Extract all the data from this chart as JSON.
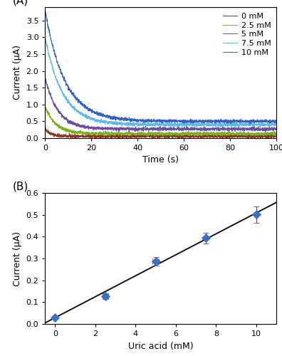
{
  "panel_A": {
    "label": "(A)",
    "curves": [
      {
        "label": "0 mM",
        "color": "#8B3520",
        "I0": 0.28,
        "tau": 2.5,
        "ss": 0.05
      },
      {
        "label": "2.5 mM",
        "color": "#7DAF1C",
        "I0": 0.95,
        "tau": 4.5,
        "ss": 0.13
      },
      {
        "label": "5 mM",
        "color": "#6B4EA0",
        "I0": 1.8,
        "tau": 5.5,
        "ss": 0.27
      },
      {
        "label": "7.5 mM",
        "color": "#5BB8E8",
        "I0": 3.0,
        "tau": 7.5,
        "ss": 0.4
      },
      {
        "label": "10 mM",
        "color": "#3060C0",
        "I0": 3.8,
        "tau": 8.5,
        "ss": 0.5
      }
    ],
    "noise_amp": 0.025,
    "xlabel": "Time (s)",
    "ylabel": "Current (μA)",
    "xlim": [
      0,
      100
    ],
    "ylim": [
      0,
      3.9
    ],
    "yticks": [
      0,
      0.5,
      1.0,
      1.5,
      2.0,
      2.5,
      3.0,
      3.5
    ],
    "xticks": [
      0,
      20,
      40,
      60,
      80,
      100
    ]
  },
  "panel_B": {
    "label": "(B)",
    "x": [
      0,
      2.5,
      5.0,
      7.5,
      10.0
    ],
    "y": [
      0.029,
      0.127,
      0.288,
      0.394,
      0.502
    ],
    "yerr": [
      0.004,
      0.013,
      0.02,
      0.025,
      0.038
    ],
    "xerr": [
      0.0,
      0.15,
      0.15,
      0.0,
      0.0
    ],
    "marker_color": "#3A6FC4",
    "marker": "D",
    "marker_size": 6,
    "line_color": "black",
    "line_slope": 0.048,
    "line_intercept": 0.029,
    "xlabel": "Uric acid (mM)",
    "ylabel": "Current (μA)",
    "xlim": [
      -0.5,
      11
    ],
    "ylim": [
      0,
      0.6
    ],
    "yticks": [
      0.0,
      0.1,
      0.2,
      0.3,
      0.4,
      0.5,
      0.6
    ],
    "xticks": [
      0,
      2,
      4,
      6,
      8,
      10
    ]
  },
  "figure_bg": "#ffffff"
}
